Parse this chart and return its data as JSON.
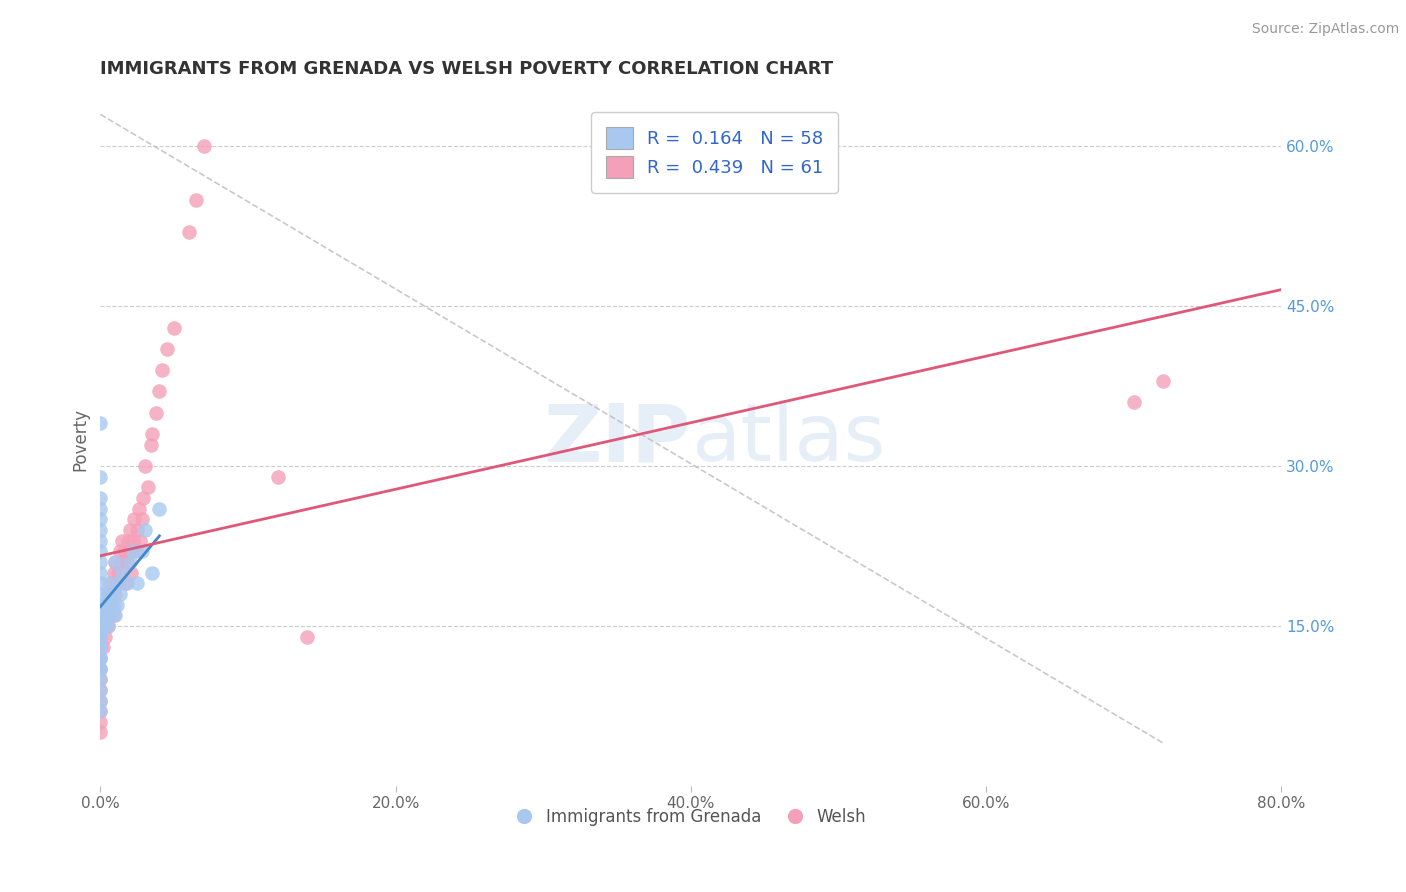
{
  "title": "IMMIGRANTS FROM GRENADA VS WELSH POVERTY CORRELATION CHART",
  "source": "Source: ZipAtlas.com",
  "ylabel": "Poverty",
  "watermark_zip": "ZIP",
  "watermark_atlas": "atlas",
  "legend_label1": "Immigrants from Grenada",
  "legend_label2": "Welsh",
  "R1": 0.164,
  "N1": 58,
  "R2": 0.439,
  "N2": 61,
  "color1": "#a8c8f0",
  "color2": "#f4a0b8",
  "trend_color1": "#4488cc",
  "trend_color2": "#e05878",
  "xlim": [
    0.0,
    0.8
  ],
  "ylim": [
    0.0,
    0.65
  ],
  "xticks": [
    0.0,
    0.2,
    0.4,
    0.6,
    0.8
  ],
  "xticklabels": [
    "0.0%",
    "20.0%",
    "40.0%",
    "60.0%",
    "80.0%"
  ],
  "yticks_right": [
    0.15,
    0.3,
    0.45,
    0.6
  ],
  "yticklabels_right": [
    "15.0%",
    "30.0%",
    "45.0%",
    "60.0%"
  ],
  "scatter1_x": [
    0.0,
    0.0,
    0.0,
    0.0,
    0.0,
    0.0,
    0.0,
    0.0,
    0.0,
    0.0,
    0.0,
    0.0,
    0.0,
    0.0,
    0.0,
    0.0,
    0.0,
    0.0,
    0.0,
    0.0,
    0.0,
    0.0,
    0.0,
    0.0,
    0.0,
    0.0,
    0.0,
    0.0,
    0.0,
    0.0,
    0.002,
    0.002,
    0.003,
    0.003,
    0.004,
    0.004,
    0.005,
    0.005,
    0.005,
    0.006,
    0.006,
    0.007,
    0.008,
    0.009,
    0.01,
    0.01,
    0.011,
    0.012,
    0.013,
    0.015,
    0.018,
    0.02,
    0.022,
    0.025,
    0.028,
    0.03,
    0.035,
    0.04
  ],
  "scatter1_y": [
    0.34,
    0.29,
    0.27,
    0.26,
    0.25,
    0.24,
    0.23,
    0.22,
    0.21,
    0.2,
    0.19,
    0.18,
    0.17,
    0.17,
    0.16,
    0.16,
    0.15,
    0.15,
    0.14,
    0.14,
    0.13,
    0.13,
    0.12,
    0.12,
    0.11,
    0.11,
    0.1,
    0.09,
    0.08,
    0.07,
    0.15,
    0.16,
    0.16,
    0.15,
    0.17,
    0.16,
    0.15,
    0.17,
    0.18,
    0.17,
    0.19,
    0.16,
    0.18,
    0.17,
    0.16,
    0.21,
    0.17,
    0.19,
    0.18,
    0.2,
    0.19,
    0.21,
    0.22,
    0.19,
    0.22,
    0.24,
    0.2,
    0.26
  ],
  "scatter2_x": [
    0.0,
    0.0,
    0.0,
    0.0,
    0.0,
    0.0,
    0.0,
    0.0,
    0.0,
    0.0,
    0.001,
    0.002,
    0.003,
    0.003,
    0.004,
    0.005,
    0.005,
    0.006,
    0.007,
    0.007,
    0.008,
    0.009,
    0.009,
    0.01,
    0.01,
    0.011,
    0.012,
    0.013,
    0.015,
    0.015,
    0.016,
    0.017,
    0.018,
    0.019,
    0.02,
    0.02,
    0.021,
    0.022,
    0.023,
    0.025,
    0.025,
    0.026,
    0.027,
    0.028,
    0.029,
    0.03,
    0.032,
    0.034,
    0.035,
    0.038,
    0.04,
    0.042,
    0.045,
    0.05,
    0.06,
    0.065,
    0.07,
    0.12,
    0.14,
    0.7,
    0.72
  ],
  "scatter2_y": [
    0.14,
    0.13,
    0.12,
    0.11,
    0.1,
    0.09,
    0.08,
    0.07,
    0.06,
    0.05,
    0.15,
    0.13,
    0.16,
    0.14,
    0.17,
    0.15,
    0.18,
    0.16,
    0.17,
    0.18,
    0.19,
    0.16,
    0.2,
    0.18,
    0.21,
    0.19,
    0.2,
    0.22,
    0.21,
    0.23,
    0.22,
    0.19,
    0.21,
    0.23,
    0.22,
    0.24,
    0.2,
    0.23,
    0.25,
    0.22,
    0.24,
    0.26,
    0.23,
    0.25,
    0.27,
    0.3,
    0.28,
    0.32,
    0.33,
    0.35,
    0.37,
    0.39,
    0.41,
    0.43,
    0.52,
    0.55,
    0.6,
    0.29,
    0.14,
    0.36,
    0.38
  ]
}
